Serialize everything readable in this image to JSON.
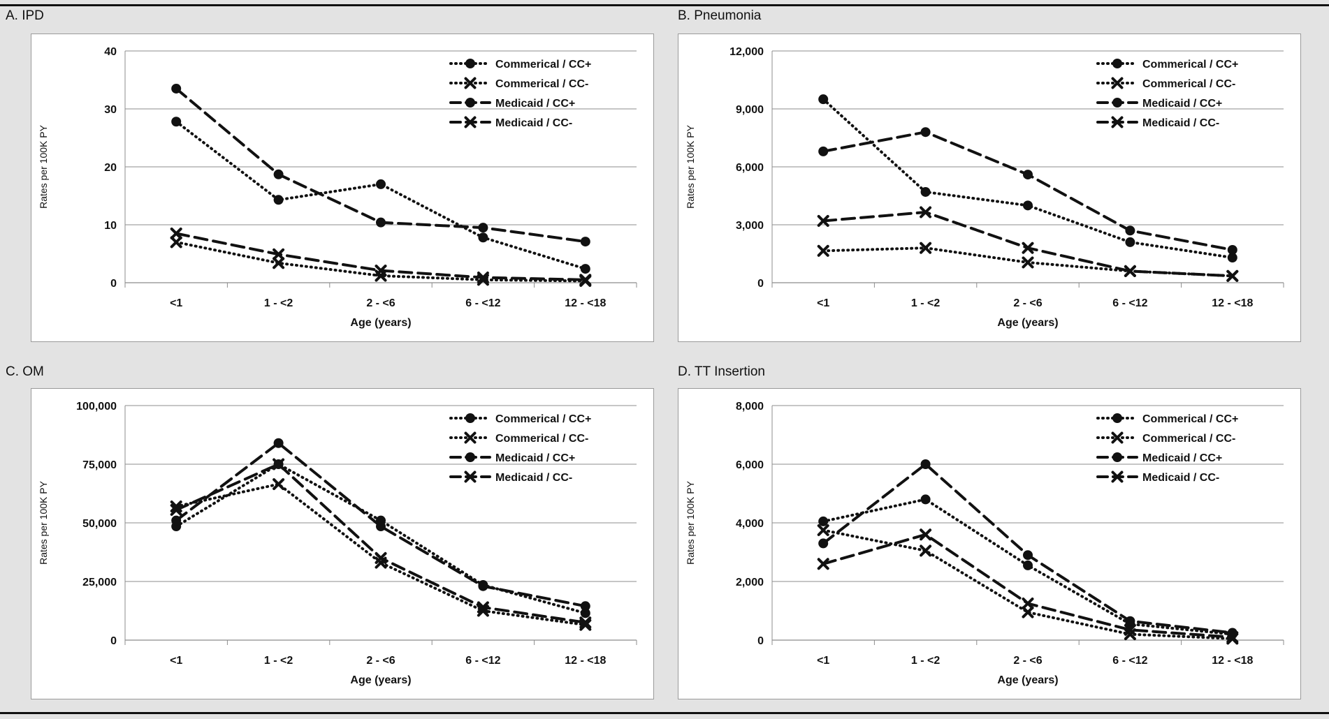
{
  "chart_data": [
    {
      "type": "line",
      "title": "A. IPD",
      "xlabel": "Age (years)",
      "ylabel": "Rates per 100K PY",
      "categories": [
        "<1",
        "1 - <2",
        "2 - <6",
        "6 - <12",
        "12 - <18"
      ],
      "ylim": [
        0,
        40
      ],
      "yticks": [
        0,
        10,
        20,
        30,
        40
      ],
      "ytick_labels": [
        "0",
        "10",
        "20",
        "30",
        "40"
      ],
      "grid": true,
      "legend_position": "top-right",
      "series": [
        {
          "name": "Commerical / CC+",
          "style": "dotted",
          "marker": "circle",
          "values": [
            27.8,
            14.3,
            17.0,
            7.8,
            2.4
          ]
        },
        {
          "name": "Commerical / CC-",
          "style": "dotted",
          "marker": "x",
          "values": [
            7.0,
            3.4,
            1.2,
            0.5,
            0.3
          ]
        },
        {
          "name": "Medicaid / CC+",
          "style": "dashed",
          "marker": "circle",
          "values": [
            33.5,
            18.7,
            10.4,
            9.5,
            7.1
          ]
        },
        {
          "name": "Medicaid / CC-",
          "style": "dashed",
          "marker": "x",
          "values": [
            8.5,
            4.9,
            2.1,
            0.9,
            0.5
          ]
        }
      ]
    },
    {
      "type": "line",
      "title": "B. Pneumonia",
      "xlabel": "Age (years)",
      "ylabel": "Rates per 100K PY",
      "categories": [
        "<1",
        "1 - <2",
        "2 - <6",
        "6 - <12",
        "12 - <18"
      ],
      "ylim": [
        0,
        12000
      ],
      "yticks": [
        0,
        3000,
        6000,
        9000,
        12000
      ],
      "ytick_labels": [
        "0",
        "3,000",
        "6,000",
        "9,000",
        "12,000"
      ],
      "grid": true,
      "legend_position": "top-right",
      "series": [
        {
          "name": "Commerical / CC+",
          "style": "dotted",
          "marker": "circle",
          "values": [
            9500,
            4700,
            4000,
            2100,
            1300
          ]
        },
        {
          "name": "Commerical / CC-",
          "style": "dotted",
          "marker": "x",
          "values": [
            1650,
            1800,
            1050,
            600,
            350
          ]
        },
        {
          "name": "Medicaid / CC+",
          "style": "dashed",
          "marker": "circle",
          "values": [
            6800,
            7800,
            5600,
            2700,
            1700
          ]
        },
        {
          "name": "Medicaid / CC-",
          "style": "dashed",
          "marker": "x",
          "values": [
            3200,
            3650,
            1800,
            600,
            350
          ]
        }
      ]
    },
    {
      "type": "line",
      "title": "C. OM",
      "xlabel": "Age (years)",
      "ylabel": "Rates per 100K PY",
      "categories": [
        "<1",
        "1 - <2",
        "2 - <6",
        "6 - <12",
        "12 - <18"
      ],
      "ylim": [
        0,
        100000
      ],
      "yticks": [
        0,
        25000,
        50000,
        75000,
        100000
      ],
      "ytick_labels": [
        "0",
        "25,000",
        "50,000",
        "75,000",
        "100,000"
      ],
      "grid": true,
      "legend_position": "top-right",
      "series": [
        {
          "name": "Commerical / CC+",
          "style": "dotted",
          "marker": "circle",
          "values": [
            48500,
            75000,
            51000,
            23500,
            11500
          ]
        },
        {
          "name": "Commerical / CC-",
          "style": "dotted",
          "marker": "x",
          "values": [
            57000,
            66500,
            33000,
            12500,
            6500
          ]
        },
        {
          "name": "Medicaid / CC+",
          "style": "dashed",
          "marker": "circle",
          "values": [
            51000,
            84000,
            48500,
            23000,
            14500
          ]
        },
        {
          "name": "Medicaid / CC-",
          "style": "dashed",
          "marker": "x",
          "values": [
            55500,
            75000,
            35000,
            14000,
            7500
          ]
        }
      ]
    },
    {
      "type": "line",
      "title": "D. TT Insertion",
      "xlabel": "Age (years)",
      "ylabel": "Rates per 100K PY",
      "categories": [
        "<1",
        "1 - <2",
        "2 - <6",
        "6 - <12",
        "12 - <18"
      ],
      "ylim": [
        0,
        8000
      ],
      "yticks": [
        0,
        2000,
        4000,
        6000,
        8000
      ],
      "ytick_labels": [
        "0",
        "2,000",
        "4,000",
        "6,000",
        "8,000"
      ],
      "grid": true,
      "legend_position": "top-right",
      "series": [
        {
          "name": "Commerical / CC+",
          "style": "dotted",
          "marker": "circle",
          "values": [
            4050,
            4800,
            2550,
            550,
            200
          ]
        },
        {
          "name": "Commerical / CC-",
          "style": "dotted",
          "marker": "x",
          "values": [
            3750,
            3050,
            950,
            200,
            50
          ]
        },
        {
          "name": "Medicaid / CC+",
          "style": "dashed",
          "marker": "circle",
          "values": [
            3300,
            6000,
            2900,
            650,
            250
          ]
        },
        {
          "name": "Medicaid / CC-",
          "style": "dashed",
          "marker": "x",
          "values": [
            2600,
            3600,
            1250,
            350,
            100
          ]
        }
      ]
    }
  ]
}
